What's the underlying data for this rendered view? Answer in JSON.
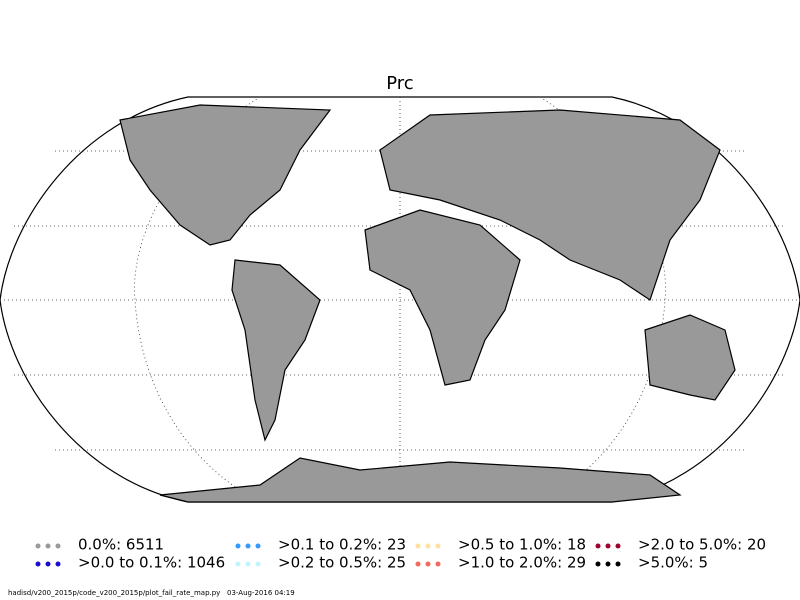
{
  "title": "Prc",
  "legend": [
    {
      "label": "0.0%: 6511",
      "color": "#999999"
    },
    {
      "label": ">0.0 to 0.1%: 1046",
      "color": "#1a0fd0"
    },
    {
      "label": ">0.1 to 0.2%: 23",
      "color": "#3399ff"
    },
    {
      "label": ">0.2 to 0.5%: 25",
      "color": "#bff4ff"
    },
    {
      "label": ">0.5 to 1.0%: 18",
      "color": "#ffe0a0"
    },
    {
      "label": ">1.0 to 2.0%: 29",
      "color": "#f36a5e"
    },
    {
      "label": ">2.0 to 5.0%: 20",
      "color": "#a00030"
    },
    {
      "label": ">5.0%: 5",
      "color": "#000000"
    }
  ],
  "footer": "hadisd/v200_2015p/code_v200_2015p/plot_fail_rate_map.py   03-Aug-2016 04:19"
}
